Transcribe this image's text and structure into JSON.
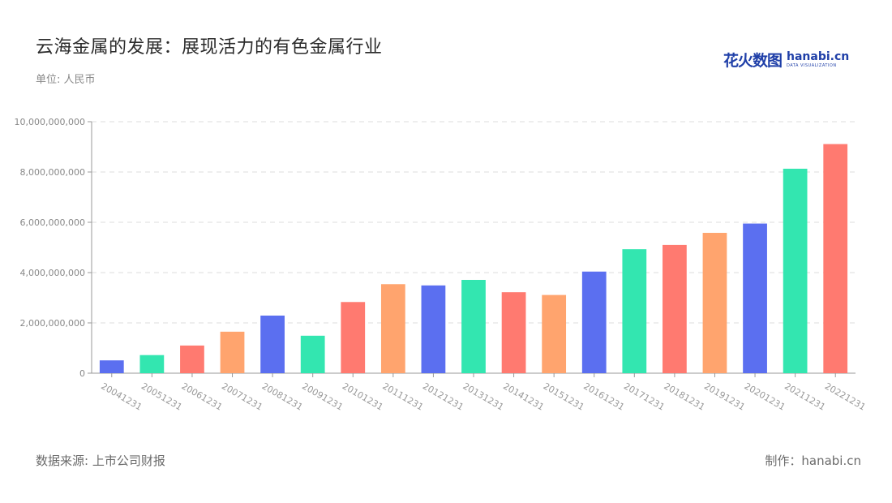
{
  "header": {
    "title": "云海金属的发展：展现活力的有色金属行业",
    "unit": "单位: 人民币"
  },
  "logo": {
    "cn": "花火数图",
    "en": "hanabi.cn",
    "sub": "DATA VISUALIZATION"
  },
  "footer": {
    "source": "数据来源: 上市公司财报",
    "credit": "制作：hanabi.cn"
  },
  "colors": [
    "#5b6ff0",
    "#33e6b0",
    "#ff7a70",
    "#ffa46e"
  ],
  "chart_data": {
    "type": "bar",
    "categories": [
      "20041231",
      "20051231",
      "20061231",
      "20071231",
      "20081231",
      "20091231",
      "20101231",
      "20111231",
      "20121231",
      "20131231",
      "20141231",
      "20151231",
      "20161231",
      "20171231",
      "20181231",
      "20191231",
      "20201231",
      "20211231",
      "20221231"
    ],
    "values": [
      510000000,
      720000000,
      1100000000,
      1650000000,
      2290000000,
      1490000000,
      2830000000,
      3540000000,
      3490000000,
      3710000000,
      3220000000,
      3110000000,
      4040000000,
      4930000000,
      5100000000,
      5580000000,
      5950000000,
      8130000000,
      9110000000
    ],
    "color_sequence": [
      "#5b6ff0",
      "#33e6b0",
      "#ff7a70",
      "#ffa46e",
      "#5b6ff0",
      "#33e6b0",
      "#ff7a70",
      "#ffa46e",
      "#5b6ff0",
      "#33e6b0",
      "#ff7a70",
      "#ffa46e",
      "#5b6ff0",
      "#33e6b0",
      "#ff7a70",
      "#ffa46e",
      "#5b6ff0",
      "#33e6b0",
      "#ff7a70"
    ],
    "yticks": [
      "0",
      "2,000,000,000",
      "4,000,000,000",
      "6,000,000,000",
      "8,000,000,000",
      "10,000,000,000"
    ],
    "ylim": [
      0,
      10000000000
    ],
    "grid": true,
    "title": "云海金属的发展：展现活力的有色金属行业",
    "xlabel": "",
    "ylabel": ""
  }
}
